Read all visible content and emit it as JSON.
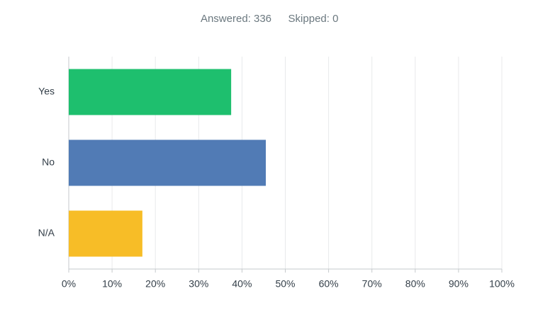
{
  "chart_data": {
    "type": "hbar",
    "answered": "Answered: 336",
    "skipped": "Skipped: 0",
    "categories": [
      "Yes",
      "No",
      "N/A"
    ],
    "values": [
      37.5,
      45.5,
      17.0
    ],
    "colors": [
      "#1ebf6e",
      "#517bb5",
      "#f7bd27"
    ],
    "xlim": [
      0,
      100
    ],
    "xticks": [
      {
        "value": 0,
        "label": "0%"
      },
      {
        "value": 10,
        "label": "10%"
      },
      {
        "value": 20,
        "label": "20%"
      },
      {
        "value": 30,
        "label": "30%"
      },
      {
        "value": 40,
        "label": "40%"
      },
      {
        "value": 50,
        "label": "50%"
      },
      {
        "value": 60,
        "label": "60%"
      },
      {
        "value": 70,
        "label": "70%"
      },
      {
        "value": 80,
        "label": "80%"
      },
      {
        "value": 90,
        "label": "90%"
      },
      {
        "value": 100,
        "label": "100%"
      }
    ],
    "grid": true
  }
}
